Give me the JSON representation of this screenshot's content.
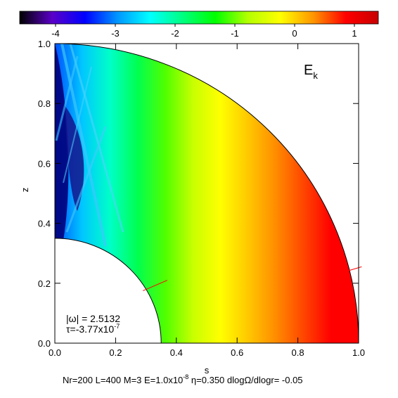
{
  "chart_data": {
    "type": "heatmap",
    "title": "",
    "field_label": "E",
    "field_label_sub": "k",
    "xlabel": "s",
    "ylabel": "z",
    "xlim": [
      0.0,
      1.0
    ],
    "ylim": [
      0.0,
      1.0
    ],
    "x_ticks": [
      "0.0",
      "0.2",
      "0.4",
      "0.6",
      "0.8",
      "1.0"
    ],
    "y_ticks": [
      "0.0",
      "0.2",
      "0.4",
      "0.6",
      "0.8",
      "1.0"
    ],
    "colorbar": {
      "range": [
        -4.6,
        1.4
      ],
      "ticks": [
        "-4",
        "-3",
        "-2",
        "-1",
        "0",
        "1"
      ],
      "colormap": [
        "#000000",
        "#5a00c8",
        "#0000ff",
        "#0096ff",
        "#00ffff",
        "#00ff80",
        "#00ff00",
        "#b4ff00",
        "#ffff00",
        "#ff9600",
        "#ff0000",
        "#c80000"
      ]
    },
    "inner_radius": 0.35,
    "outer_radius": 1.0,
    "annotation_omega": "|ω| = 2.5132",
    "annotation_tau_base": "τ=-3.77x10",
    "annotation_tau_exp": "-7",
    "caption_part1": "Nr=200 L=400 M=3  E=1.0x10",
    "caption_exp": "-8",
    "caption_part2": " η=0.350 dlogΩ/dlogr= -0.05",
    "marker_color": "#ff0000"
  }
}
